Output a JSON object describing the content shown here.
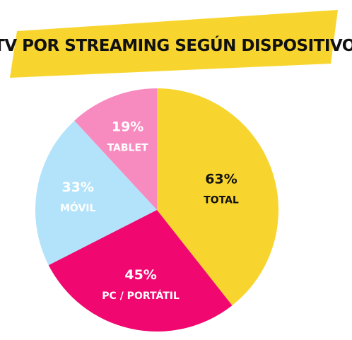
{
  "colors": {
    "banner": "#f8d52e",
    "title": "#111111",
    "slice_edge": "#ffffff"
  },
  "chart_data": {
    "type": "pie",
    "title": "TV POR STREAMING SEGÚN DISPOSITIVO",
    "slices": [
      {
        "label": "TOTAL",
        "pct_label": "63%",
        "value": 63,
        "color": "#f8d52e",
        "text_color": "#111111"
      },
      {
        "label": "PC / PORTÁTIL",
        "pct_label": "45%",
        "value": 45,
        "color": "#f0076f",
        "text_color": "#ffffff"
      },
      {
        "label": "MÓVIL",
        "pct_label": "33%",
        "value": 33,
        "color": "#b3e3fa",
        "text_color": "#ffffff"
      },
      {
        "label": "TABLET",
        "pct_label": "19%",
        "value": 19,
        "color": "#f78bbf",
        "text_color": "#ffffff"
      }
    ],
    "legend": "none",
    "grid": false
  }
}
